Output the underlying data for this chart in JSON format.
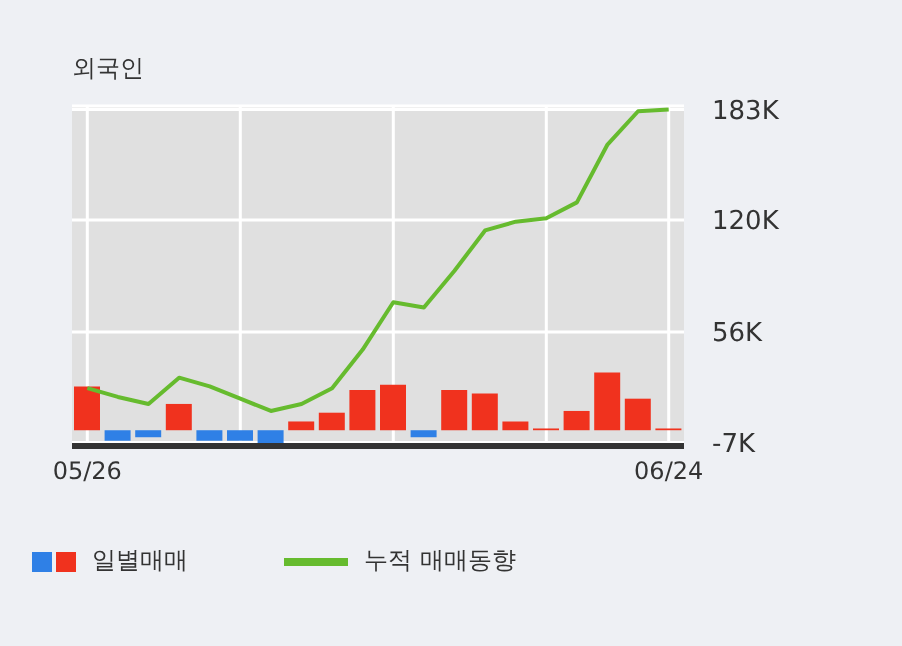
{
  "chart_data": {
    "type": "bar",
    "title": "외국인",
    "categories": [
      "05/26",
      null,
      null,
      null,
      null,
      null,
      null,
      null,
      null,
      null,
      null,
      null,
      null,
      null,
      null,
      null,
      null,
      null,
      null,
      "06/24"
    ],
    "series": [
      {
        "name": "일별매매",
        "values": [
          25,
          -6,
          -4,
          15,
          -6,
          -6,
          -8,
          5,
          10,
          23,
          26,
          -4,
          23,
          21,
          5,
          1,
          11,
          33,
          18,
          1
        ],
        "colors": [
          "#f0321e",
          "#2f80e6",
          "#2f80e6",
          "#f0321e",
          "#2f80e6",
          "#2f80e6",
          "#2f80e6",
          "#f0321e",
          "#f0321e",
          "#f0321e",
          "#f0321e",
          "#2f80e6",
          "#f0321e",
          "#f0321e",
          "#f0321e",
          "#f0321e",
          "#f0321e",
          "#f0321e",
          "#f0321e",
          "#f0321e"
        ]
      },
      {
        "name": "누적 매매동향",
        "type": "line",
        "color": "#66bb2e",
        "values": [
          24,
          19,
          15,
          30,
          25,
          18,
          11,
          15,
          24,
          46,
          73,
          70,
          91,
          114,
          119,
          121,
          130,
          163,
          182,
          183
        ]
      }
    ],
    "ylim": [
      -9,
      185
    ],
    "yticks": [
      {
        "value": -7,
        "label": "-7K"
      },
      {
        "value": 56,
        "label": "56K"
      },
      {
        "value": 120,
        "label": "120K"
      },
      {
        "value": 183,
        "label": "183K"
      }
    ],
    "grid": true,
    "legend": "bottom",
    "marker": "none"
  }
}
